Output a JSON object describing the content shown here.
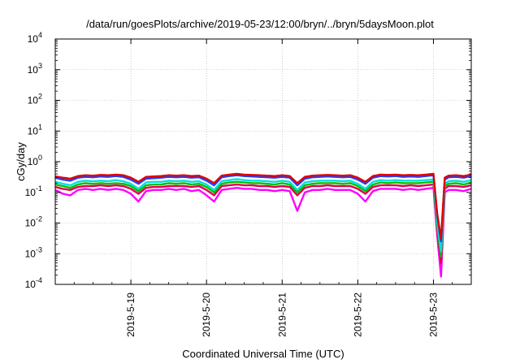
{
  "chart_data": {
    "type": "line",
    "title": "/data/run/goesPlots/archive/2019-05-23/12:00/bryn/../bryn/5daysMoon.plot",
    "xlabel": "Coordinated Universal Time (UTC)",
    "ylabel": "cGy/day",
    "y_scale": "log",
    "ylim": [
      0.0001,
      10000
    ],
    "xlim_days": [
      0,
      5.5
    ],
    "grid": true,
    "legend": "none",
    "x_ticks": [
      {
        "day": 1,
        "label": "2019-5-19"
      },
      {
        "day": 2,
        "label": "2019-5-20"
      },
      {
        "day": 3,
        "label": "2019-5-21"
      },
      {
        "day": 4,
        "label": "2019-5-22"
      },
      {
        "day": 5,
        "label": "2019-5-23"
      }
    ],
    "y_ticks": [
      {
        "base": "10",
        "exp": "4",
        "value": 10000
      },
      {
        "base": "10",
        "exp": "3",
        "value": 1000
      },
      {
        "base": "10",
        "exp": "2",
        "value": 100
      },
      {
        "base": "10",
        "exp": "1",
        "value": 10
      },
      {
        "base": "10",
        "exp": "0",
        "value": 1
      },
      {
        "base": "10",
        "exp": "-1",
        "value": 0.1
      },
      {
        "base": "10",
        "exp": "-2",
        "value": 0.01
      },
      {
        "base": "10",
        "exp": "-3",
        "value": 0.001
      },
      {
        "base": "10",
        "exp": "-4",
        "value": 0.0001
      }
    ],
    "colors": [
      "#ff00ff",
      "#e0004c",
      "#00c000",
      "#00e0e0",
      "#2040ff",
      "#e00000"
    ],
    "series": [
      {
        "color": "#e00000",
        "x": [
          0,
          0.1,
          0.2,
          0.3,
          0.4,
          0.5,
          0.6,
          0.7,
          0.8,
          0.9,
          1.0,
          1.1,
          1.2,
          1.3,
          1.4,
          1.5,
          1.6,
          1.7,
          1.8,
          1.9,
          2.0,
          2.1,
          2.2,
          2.3,
          2.4,
          2.5,
          2.6,
          2.7,
          2.8,
          2.9,
          3.0,
          3.1,
          3.2,
          3.3,
          3.4,
          3.5,
          3.6,
          3.7,
          3.8,
          3.9,
          4.0,
          4.1,
          4.2,
          4.3,
          4.4,
          4.5,
          4.6,
          4.7,
          4.8,
          4.9,
          5.0,
          5.05,
          5.1,
          5.15,
          5.2,
          5.3,
          5.4,
          5.5
        ],
        "values": [
          0.33,
          0.3,
          0.28,
          0.34,
          0.36,
          0.35,
          0.37,
          0.36,
          0.38,
          0.36,
          0.3,
          0.22,
          0.32,
          0.33,
          0.34,
          0.36,
          0.35,
          0.36,
          0.34,
          0.35,
          0.28,
          0.2,
          0.35,
          0.38,
          0.4,
          0.38,
          0.37,
          0.36,
          0.35,
          0.34,
          0.36,
          0.34,
          0.2,
          0.32,
          0.35,
          0.36,
          0.37,
          0.36,
          0.35,
          0.36,
          0.3,
          0.22,
          0.34,
          0.38,
          0.37,
          0.38,
          0.36,
          0.37,
          0.36,
          0.38,
          0.4,
          0.02,
          0.003,
          0.3,
          0.35,
          0.36,
          0.34,
          0.38
        ]
      },
      {
        "color": "#2040ff",
        "x": [
          0,
          0.1,
          0.2,
          0.3,
          0.4,
          0.5,
          0.6,
          0.7,
          0.8,
          0.9,
          1.0,
          1.1,
          1.2,
          1.3,
          1.4,
          1.5,
          1.6,
          1.7,
          1.8,
          1.9,
          2.0,
          2.1,
          2.2,
          2.3,
          2.4,
          2.5,
          2.6,
          2.7,
          2.8,
          2.9,
          3.0,
          3.1,
          3.2,
          3.3,
          3.4,
          3.5,
          3.6,
          3.7,
          3.8,
          3.9,
          4.0,
          4.1,
          4.2,
          4.3,
          4.4,
          4.5,
          4.6,
          4.7,
          4.8,
          4.9,
          5.0,
          5.05,
          5.1,
          5.15,
          5.2,
          5.3,
          5.4,
          5.5
        ],
        "values": [
          0.3,
          0.26,
          0.24,
          0.3,
          0.32,
          0.31,
          0.33,
          0.32,
          0.34,
          0.32,
          0.26,
          0.19,
          0.28,
          0.29,
          0.3,
          0.32,
          0.31,
          0.32,
          0.3,
          0.31,
          0.24,
          0.17,
          0.31,
          0.34,
          0.36,
          0.34,
          0.33,
          0.32,
          0.31,
          0.3,
          0.32,
          0.3,
          0.17,
          0.28,
          0.31,
          0.32,
          0.33,
          0.32,
          0.31,
          0.32,
          0.26,
          0.19,
          0.3,
          0.34,
          0.33,
          0.34,
          0.32,
          0.33,
          0.32,
          0.34,
          0.36,
          0.018,
          0.0025,
          0.26,
          0.31,
          0.32,
          0.3,
          0.34
        ]
      },
      {
        "color": "#00e0e0",
        "x": [
          0,
          0.1,
          0.2,
          0.3,
          0.4,
          0.5,
          0.6,
          0.7,
          0.8,
          0.9,
          1.0,
          1.1,
          1.2,
          1.3,
          1.4,
          1.5,
          1.6,
          1.7,
          1.8,
          1.9,
          2.0,
          2.1,
          2.2,
          2.3,
          2.4,
          2.5,
          2.6,
          2.7,
          2.8,
          2.9,
          3.0,
          3.1,
          3.2,
          3.3,
          3.4,
          3.5,
          3.6,
          3.7,
          3.8,
          3.9,
          4.0,
          4.1,
          4.2,
          4.3,
          4.4,
          4.5,
          4.6,
          4.7,
          4.8,
          4.9,
          5.0,
          5.05,
          5.1,
          5.15,
          5.2,
          5.3,
          5.4,
          5.5
        ],
        "values": [
          0.22,
          0.19,
          0.17,
          0.22,
          0.24,
          0.23,
          0.24,
          0.23,
          0.25,
          0.23,
          0.19,
          0.13,
          0.21,
          0.22,
          0.22,
          0.24,
          0.23,
          0.24,
          0.22,
          0.23,
          0.18,
          0.12,
          0.23,
          0.25,
          0.27,
          0.25,
          0.24,
          0.24,
          0.23,
          0.22,
          0.24,
          0.22,
          0.12,
          0.21,
          0.23,
          0.24,
          0.24,
          0.24,
          0.23,
          0.24,
          0.19,
          0.13,
          0.22,
          0.25,
          0.24,
          0.25,
          0.24,
          0.24,
          0.24,
          0.25,
          0.26,
          0.01,
          0.0012,
          0.19,
          0.23,
          0.24,
          0.22,
          0.25
        ]
      },
      {
        "color": "#00c000",
        "x": [
          0,
          0.1,
          0.2,
          0.3,
          0.4,
          0.5,
          0.6,
          0.7,
          0.8,
          0.9,
          1.0,
          1.1,
          1.2,
          1.3,
          1.4,
          1.5,
          1.6,
          1.7,
          1.8,
          1.9,
          2.0,
          2.1,
          2.2,
          2.3,
          2.4,
          2.5,
          2.6,
          2.7,
          2.8,
          2.9,
          3.0,
          3.1,
          3.2,
          3.3,
          3.4,
          3.5,
          3.6,
          3.7,
          3.8,
          3.9,
          4.0,
          4.1,
          4.2,
          4.3,
          4.4,
          4.5,
          4.6,
          4.7,
          4.8,
          4.9,
          5.0,
          5.05,
          5.1,
          5.15,
          5.2,
          5.3,
          5.4,
          5.5
        ],
        "values": [
          0.18,
          0.16,
          0.14,
          0.18,
          0.2,
          0.19,
          0.2,
          0.19,
          0.2,
          0.19,
          0.16,
          0.11,
          0.17,
          0.18,
          0.18,
          0.2,
          0.19,
          0.2,
          0.18,
          0.19,
          0.15,
          0.1,
          0.19,
          0.21,
          0.22,
          0.21,
          0.2,
          0.2,
          0.19,
          0.18,
          0.2,
          0.18,
          0.1,
          0.17,
          0.19,
          0.2,
          0.2,
          0.2,
          0.19,
          0.2,
          0.16,
          0.11,
          0.18,
          0.21,
          0.2,
          0.21,
          0.2,
          0.2,
          0.2,
          0.21,
          0.22,
          0.008,
          0.0008,
          0.16,
          0.19,
          0.2,
          0.18,
          0.21
        ]
      },
      {
        "color": "#e0004c",
        "x": [
          0,
          0.1,
          0.2,
          0.3,
          0.4,
          0.5,
          0.6,
          0.7,
          0.8,
          0.9,
          1.0,
          1.1,
          1.2,
          1.3,
          1.4,
          1.5,
          1.6,
          1.7,
          1.8,
          1.9,
          2.0,
          2.1,
          2.2,
          2.3,
          2.4,
          2.5,
          2.6,
          2.7,
          2.8,
          2.9,
          3.0,
          3.1,
          3.2,
          3.3,
          3.4,
          3.5,
          3.6,
          3.7,
          3.8,
          3.9,
          4.0,
          4.1,
          4.2,
          4.3,
          4.4,
          4.5,
          4.6,
          4.7,
          4.8,
          4.9,
          5.0,
          5.05,
          5.1,
          5.15,
          5.2,
          5.3,
          5.4,
          5.5
        ],
        "values": [
          0.15,
          0.13,
          0.12,
          0.15,
          0.16,
          0.16,
          0.17,
          0.16,
          0.17,
          0.16,
          0.13,
          0.09,
          0.14,
          0.15,
          0.15,
          0.16,
          0.16,
          0.16,
          0.15,
          0.16,
          0.12,
          0.08,
          0.16,
          0.17,
          0.18,
          0.17,
          0.17,
          0.16,
          0.16,
          0.15,
          0.16,
          0.15,
          0.08,
          0.14,
          0.16,
          0.16,
          0.17,
          0.16,
          0.16,
          0.16,
          0.13,
          0.09,
          0.15,
          0.17,
          0.17,
          0.17,
          0.16,
          0.17,
          0.16,
          0.17,
          0.18,
          0.006,
          0.0005,
          0.13,
          0.16,
          0.16,
          0.15,
          0.17
        ]
      },
      {
        "color": "#ff00ff",
        "x": [
          0,
          0.1,
          0.2,
          0.3,
          0.4,
          0.5,
          0.6,
          0.7,
          0.8,
          0.9,
          1.0,
          1.1,
          1.2,
          1.3,
          1.4,
          1.5,
          1.6,
          1.7,
          1.8,
          1.9,
          2.0,
          2.1,
          2.2,
          2.3,
          2.4,
          2.5,
          2.6,
          2.7,
          2.8,
          2.9,
          3.0,
          3.1,
          3.2,
          3.3,
          3.4,
          3.5,
          3.6,
          3.7,
          3.8,
          3.9,
          4.0,
          4.1,
          4.2,
          4.3,
          4.4,
          4.5,
          4.6,
          4.7,
          4.8,
          4.9,
          5.0,
          5.05,
          5.1,
          5.15,
          5.2,
          5.3,
          5.4,
          5.5
        ],
        "values": [
          0.12,
          0.09,
          0.08,
          0.12,
          0.13,
          0.12,
          0.13,
          0.12,
          0.13,
          0.12,
          0.09,
          0.05,
          0.11,
          0.12,
          0.12,
          0.13,
          0.12,
          0.13,
          0.11,
          0.12,
          0.08,
          0.05,
          0.12,
          0.13,
          0.14,
          0.13,
          0.13,
          0.12,
          0.12,
          0.11,
          0.12,
          0.11,
          0.025,
          0.1,
          0.12,
          0.12,
          0.13,
          0.12,
          0.12,
          0.12,
          0.09,
          0.05,
          0.11,
          0.13,
          0.13,
          0.13,
          0.12,
          0.13,
          0.12,
          0.13,
          0.14,
          0.004,
          0.00018,
          0.1,
          0.12,
          0.12,
          0.11,
          0.13
        ]
      }
    ]
  }
}
